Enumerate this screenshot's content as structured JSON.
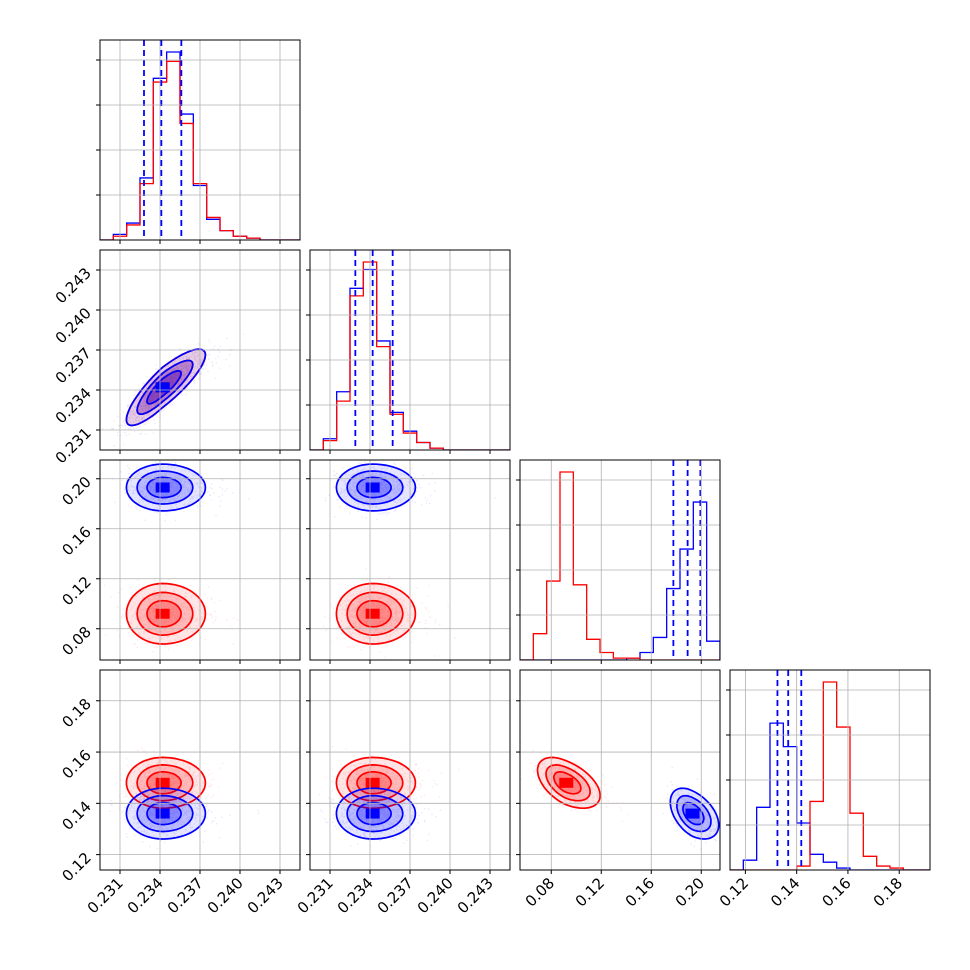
{
  "chart_data": {
    "type": "corner",
    "title": "",
    "colors": {
      "red": "#ff0000",
      "blue": "#0000ff",
      "grid": "#b0b0b0"
    },
    "params": [
      {
        "range": [
          0.2295,
          0.2445
        ],
        "ticks": [
          "0.231",
          "0.234",
          "0.237",
          "0.240",
          "0.243"
        ]
      },
      {
        "range": [
          0.2295,
          0.2445
        ],
        "ticks": [
          "0.231",
          "0.234",
          "0.237",
          "0.240",
          "0.243"
        ]
      },
      {
        "range": [
          0.055,
          0.215
        ],
        "ticks": [
          "0.08",
          "0.12",
          "0.16",
          "0.20"
        ]
      },
      {
        "range": [
          0.114,
          0.192
        ],
        "ticks": [
          "0.12",
          "0.14",
          "0.16",
          "0.18"
        ]
      }
    ],
    "series": [
      {
        "color": "red",
        "mean": [
          0.2342,
          0.2342,
          0.092,
          0.148
        ],
        "sd": [
          0.0013,
          0.0013,
          0.011,
          0.0045
        ],
        "corr01": 0.85,
        "corr23": -0.5
      },
      {
        "color": "blue",
        "mean": [
          0.2342,
          0.2342,
          0.193,
          0.136
        ],
        "sd": [
          0.0013,
          0.0013,
          0.0085,
          0.0045
        ],
        "corr01": 0.85,
        "corr23": -0.45
      }
    ],
    "quantile_lines": {
      "color": "blue",
      "values": [
        [
          0.2328,
          0.2341,
          0.2356
        ],
        [
          0.2329,
          0.2342,
          0.2357
        ],
        [
          0.1777,
          0.1891,
          0.1993
        ],
        [
          0.1325,
          0.1367,
          0.1418
        ]
      ]
    },
    "histograms": [
      {
        "red": [
          0,
          0.02,
          0.08,
          0.3,
          0.84,
          0.95,
          0.62,
          0.3,
          0.12,
          0.05,
          0.02,
          0.01,
          0,
          0,
          0
        ],
        "blue": [
          0,
          0.03,
          0.09,
          0.33,
          0.86,
          1.0,
          0.67,
          0.29,
          0.11,
          0.05,
          0.02,
          0.01,
          0,
          0,
          0
        ]
      },
      {
        "red": [
          0,
          0.05,
          0.26,
          0.82,
          1.0,
          0.55,
          0.19,
          0.09,
          0.04,
          0.01,
          0,
          0,
          0,
          0,
          0
        ],
        "blue": [
          0,
          0.06,
          0.31,
          0.86,
          0.96,
          0.58,
          0.2,
          0.1,
          0.04,
          0.01,
          0,
          0,
          0,
          0,
          0
        ]
      },
      {
        "red": [
          0,
          0.14,
          0.42,
          1.0,
          0.4,
          0.11,
          0.04,
          0.01,
          0.01,
          0,
          0,
          0,
          0,
          0,
          0
        ],
        "blue": [
          0,
          0,
          0,
          0,
          0,
          0,
          0,
          0,
          0.01,
          0.04,
          0.12,
          0.38,
          0.59,
          0.84,
          0.1
        ]
      },
      {
        "red": [
          0,
          0,
          0,
          0,
          0,
          0.02,
          0.35,
          0.96,
          0.73,
          0.29,
          0.07,
          0.02,
          0.01,
          0,
          0
        ],
        "blue": [
          0,
          0.05,
          0.32,
          0.75,
          0.63,
          0.24,
          0.08,
          0.04,
          0.01,
          0,
          0,
          0,
          0,
          0,
          0
        ]
      }
    ]
  }
}
